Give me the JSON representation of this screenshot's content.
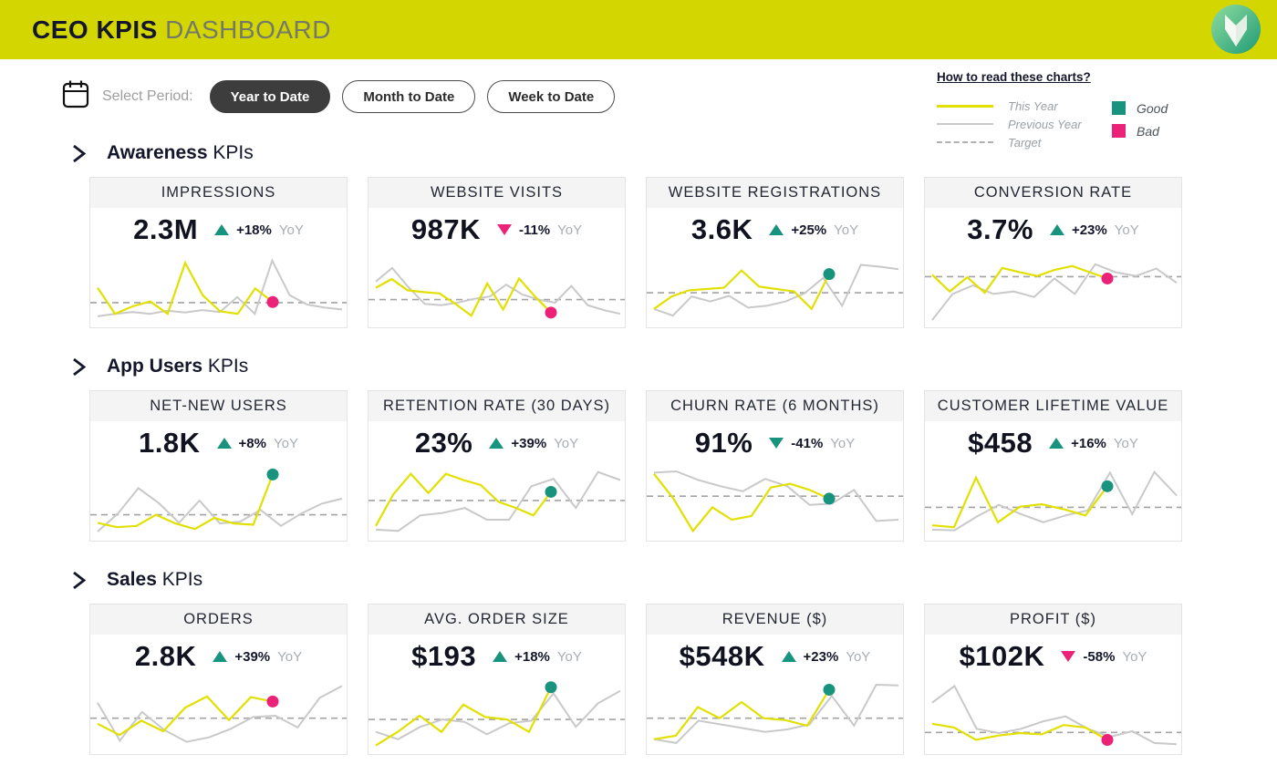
{
  "header": {
    "title_bold": "CEO KPIS",
    "title_light": "DASHBOARD"
  },
  "toolbar": {
    "label": "Select Period:",
    "periods": [
      {
        "label": "Year to Date",
        "active": true
      },
      {
        "label": "Month to Date",
        "active": false
      },
      {
        "label": "Week to Date",
        "active": false
      }
    ]
  },
  "legend": {
    "title": "How to read these charts?",
    "lines": [
      {
        "label": "This Year",
        "style": "this-year"
      },
      {
        "label": "Previous Year",
        "style": "previous-year"
      },
      {
        "label": "Target",
        "style": "target"
      }
    ],
    "statuses": [
      {
        "label": "Good",
        "status": "good"
      },
      {
        "label": "Bad",
        "status": "bad"
      }
    ]
  },
  "colors": {
    "header_bg": "#d4d600",
    "this_year": "#e2e000",
    "previous_year": "#c9c9c9",
    "target": "#a3a3a3",
    "good": "#18947e",
    "bad": "#eb2277",
    "dark": "#14172b"
  },
  "sections": [
    {
      "title_bold": "Awareness",
      "title_light": "KPIs",
      "kpis": [
        {
          "title": "IMPRESSIONS",
          "value": "2.3M",
          "delta": "+18%",
          "yoy": "YoY",
          "dir": "up",
          "delta_status": "good",
          "dot": "bad",
          "target": 0.28,
          "this_year": [
            0.52,
            0.1,
            0.22,
            0.3,
            0.1,
            0.92,
            0.4,
            0.14,
            0.1,
            0.51,
            0.29
          ],
          "prev_year": [
            0.06,
            0.1,
            0.13,
            0.1,
            0.15,
            0.12,
            0.16,
            0.13,
            0.37,
            0.1,
            0.96,
            0.4,
            0.25,
            0.2,
            0.17
          ]
        },
        {
          "title": "WEBSITE VISITS",
          "value": "987K",
          "delta": "-11%",
          "yoy": "YoY",
          "dir": "down",
          "delta_status": "bad",
          "dot": "bad",
          "target": 0.33,
          "this_year": [
            0.52,
            0.66,
            0.48,
            0.45,
            0.43,
            0.26,
            0.07,
            0.59,
            0.17,
            0.67,
            0.38,
            0.12
          ],
          "prev_year": [
            0.62,
            0.84,
            0.53,
            0.26,
            0.24,
            0.28,
            0.34,
            0.38,
            0.57,
            0.41,
            0.33,
            0.28,
            0.55,
            0.24,
            0.16,
            0.1
          ]
        },
        {
          "title": "WEBSITE REGISTRATIONS",
          "value": "3.6K",
          "delta": "+25%",
          "yoy": "YoY",
          "dir": "up",
          "delta_status": "good",
          "dot": "good",
          "target": 0.44,
          "this_year": [
            0.18,
            0.38,
            0.48,
            0.5,
            0.52,
            0.8,
            0.54,
            0.5,
            0.46,
            0.18,
            0.74
          ],
          "prev_year": [
            0.18,
            0.07,
            0.38,
            0.3,
            0.39,
            0.2,
            0.23,
            0.3,
            0.43,
            0.68,
            0.23,
            0.89,
            0.86,
            0.82
          ]
        },
        {
          "title": "CONVERSION RATE",
          "value": "3.7%",
          "delta": "+23%",
          "yoy": "YoY",
          "dir": "up",
          "delta_status": "good",
          "dot": "bad",
          "target": 0.7,
          "this_year": [
            0.73,
            0.46,
            0.69,
            0.44,
            0.84,
            0.77,
            0.71,
            0.81,
            0.87,
            0.77,
            0.67
          ],
          "prev_year": [
            0.0,
            0.42,
            0.56,
            0.42,
            0.46,
            0.37,
            0.67,
            0.42,
            0.9,
            0.77,
            0.71,
            0.83,
            0.6
          ]
        }
      ]
    },
    {
      "title_bold": "App Users",
      "title_light": "KPIs",
      "kpis": [
        {
          "title": "NET-NEW USERS",
          "value": "1.8K",
          "delta": "+8%",
          "yoy": "YoY",
          "dir": "up",
          "delta_status": "good",
          "dot": "good",
          "target": 0.3,
          "this_year": [
            0.17,
            0.1,
            0.12,
            0.3,
            0.16,
            0.07,
            0.25,
            0.16,
            0.14,
            0.95
          ],
          "prev_year": [
            0.03,
            0.32,
            0.73,
            0.49,
            0.17,
            0.53,
            0.16,
            0.19,
            0.38,
            0.12,
            0.32,
            0.48,
            0.56
          ]
        },
        {
          "title": "RETENTION RATE (30 DAYS)",
          "value": "23%",
          "delta": "+39%",
          "yoy": "YoY",
          "dir": "up",
          "delta_status": "good",
          "dot": "good",
          "target": 0.53,
          "this_year": [
            0.12,
            0.63,
            0.96,
            0.65,
            0.96,
            0.86,
            0.78,
            0.51,
            0.41,
            0.29,
            0.67
          ],
          "prev_year": [
            0.06,
            0.04,
            0.29,
            0.33,
            0.41,
            0.22,
            0.22,
            0.76,
            0.88,
            0.41,
            0.99,
            0.86
          ]
        },
        {
          "title": "CHURN RATE (6 MONTHS)",
          "value": "91%",
          "delta": "-41%",
          "yoy": "YoY",
          "dir": "down",
          "delta_status": "good",
          "dot": "good",
          "target": 0.6,
          "this_year": [
            0.96,
            0.56,
            0.04,
            0.42,
            0.22,
            0.28,
            0.74,
            0.8,
            0.7,
            0.56
          ],
          "prev_year": [
            0.98,
            1.0,
            0.86,
            0.76,
            0.68,
            0.88,
            0.76,
            0.46,
            0.48,
            0.7,
            0.2,
            0.22
          ]
        },
        {
          "title": "CUSTOMER LIFETIME VALUE",
          "value": "$458",
          "delta": "+16%",
          "yoy": "YoY",
          "dir": "up",
          "delta_status": "good",
          "dot": "good",
          "target": 0.42,
          "this_year": [
            0.13,
            0.1,
            0.9,
            0.18,
            0.43,
            0.47,
            0.39,
            0.29,
            0.76
          ],
          "prev_year": [
            0.06,
            0.05,
            0.27,
            0.46,
            0.31,
            0.18,
            0.29,
            0.37,
            0.98,
            0.31,
            0.99,
            0.61
          ]
        }
      ]
    },
    {
      "title_bold": "Sales",
      "title_light": "KPIs",
      "kpis": [
        {
          "title": "ORDERS",
          "value": "2.8K",
          "delta": "+39%",
          "yoy": "YoY",
          "dir": "up",
          "delta_status": "good",
          "dot": "bad",
          "target": 0.46,
          "this_year": [
            0.37,
            0.19,
            0.42,
            0.25,
            0.63,
            0.81,
            0.43,
            0.8,
            0.73
          ],
          "prev_year": [
            0.71,
            0.1,
            0.56,
            0.27,
            0.08,
            0.15,
            0.29,
            0.48,
            0.5,
            0.31,
            0.79,
            0.98
          ]
        },
        {
          "title": "AVG. ORDER SIZE",
          "value": "$193",
          "delta": "+18%",
          "yoy": "YoY",
          "dir": "up",
          "delta_status": "good",
          "dot": "good",
          "target": 0.44,
          "this_year": [
            0.02,
            0.24,
            0.5,
            0.24,
            0.68,
            0.48,
            0.44,
            0.24,
            0.96
          ],
          "prev_year": [
            0.24,
            0.12,
            0.32,
            0.44,
            0.4,
            0.2,
            0.38,
            0.42,
            0.86,
            0.32,
            0.7,
            0.9
          ]
        },
        {
          "title": "REVENUE ($)",
          "value": "$548K",
          "delta": "+23%",
          "yoy": "YoY",
          "dir": "up",
          "delta_status": "good",
          "dot": "good",
          "target": 0.46,
          "this_year": [
            0.12,
            0.18,
            0.64,
            0.46,
            0.72,
            0.46,
            0.43,
            0.34,
            0.92
          ],
          "prev_year": [
            0.12,
            0.06,
            0.42,
            0.36,
            0.3,
            0.24,
            0.28,
            0.36,
            0.82,
            0.34,
            1.0,
            0.99
          ]
        },
        {
          "title": "PROFIT ($)",
          "value": "$102K",
          "delta": "-58%",
          "yoy": "YoY",
          "dir": "down",
          "delta_status": "bad",
          "dot": "bad",
          "target": 0.23,
          "this_year": [
            0.37,
            0.31,
            0.11,
            0.18,
            0.22,
            0.2,
            0.35,
            0.31,
            0.11
          ],
          "prev_year": [
            0.71,
            0.98,
            0.29,
            0.22,
            0.29,
            0.41,
            0.49,
            0.29,
            0.16,
            0.25,
            0.06,
            0.04
          ]
        }
      ]
    }
  ]
}
